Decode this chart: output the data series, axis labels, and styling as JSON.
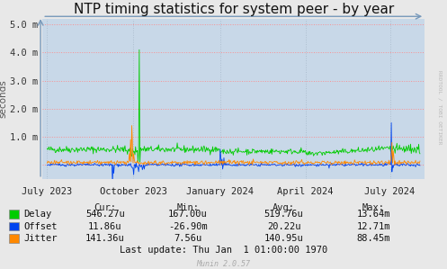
{
  "title": "NTP timing statistics for system peer - by year",
  "ylabel": "seconds",
  "background_color": "#e8e8e8",
  "plot_bg_color": "#c8d8e8",
  "grid_h_color": "#ff8888",
  "grid_v_color": "#aabbcc",
  "ylim": [
    -0.0005,
    0.0052
  ],
  "yticks": [
    0.0,
    0.001,
    0.002,
    0.003,
    0.004,
    0.005
  ],
  "ytick_labels": [
    "",
    "1.0 m",
    "2.0 m",
    "3.0 m",
    "4.0 m",
    "5.0 m"
  ],
  "delay_color": "#00cc00",
  "offset_color": "#0044ee",
  "jitter_color": "#ff8800",
  "watermark": "RRDTOOL / TOBI OETIKER",
  "munin_version": "Munin 2.0.57",
  "legend_items": [
    "Delay",
    "Offset",
    "Jitter"
  ],
  "cur_label": "Cur:",
  "min_label": "Min:",
  "avg_label": "Avg:",
  "max_label": "Max:",
  "delay_cur": "546.27u",
  "delay_min": "167.00u",
  "delay_avg": "519.76u",
  "delay_max": "13.64m",
  "offset_cur": "11.86u",
  "offset_min": "-26.90m",
  "offset_avg": "20.22u",
  "offset_max": "12.71m",
  "jitter_cur": "141.36u",
  "jitter_min": "7.56u",
  "jitter_avg": "140.95u",
  "jitter_max": "88.45m",
  "last_update": "Last update: Thu Jan  1 01:00:00 1970",
  "xtick_labels": [
    "July 2023",
    "October 2023",
    "January 2024",
    "April 2024",
    "July 2024"
  ],
  "xtick_positions": [
    0,
    92,
    184,
    275,
    365
  ],
  "xlim": [
    -5,
    402
  ],
  "title_fontsize": 11,
  "axis_fontsize": 7.5,
  "legend_fontsize": 7.5,
  "stats_fontsize": 7.5
}
